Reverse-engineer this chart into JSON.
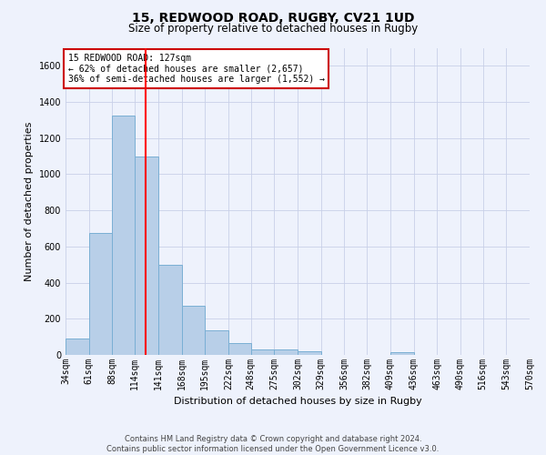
{
  "title1": "15, REDWOOD ROAD, RUGBY, CV21 1UD",
  "title2": "Size of property relative to detached houses in Rugby",
  "xlabel": "Distribution of detached houses by size in Rugby",
  "ylabel": "Number of detached properties",
  "annotation_line1": "15 REDWOOD ROAD: 127sqm",
  "annotation_line2": "← 62% of detached houses are smaller (2,657)",
  "annotation_line3": "36% of semi-detached houses are larger (1,552) →",
  "footer1": "Contains HM Land Registry data © Crown copyright and database right 2024.",
  "footer2": "Contains public sector information licensed under the Open Government Licence v3.0.",
  "bar_color": "#b8cfe8",
  "bar_edge_color": "#7aafd4",
  "red_line_x": 127,
  "bins": [
    34,
    61,
    88,
    114,
    141,
    168,
    195,
    222,
    248,
    275,
    302,
    329,
    356,
    382,
    409,
    436,
    463,
    490,
    516,
    543,
    570
  ],
  "heights": [
    93,
    675,
    1325,
    1100,
    500,
    270,
    135,
    68,
    30,
    30,
    20,
    0,
    0,
    0,
    15,
    0,
    0,
    0,
    0,
    0
  ],
  "ylim": [
    0,
    1700
  ],
  "yticks": [
    0,
    200,
    400,
    600,
    800,
    1000,
    1200,
    1400,
    1600
  ],
  "background_color": "#eef2fc",
  "grid_color": "#c8d0e8",
  "annotation_box_facecolor": "#ffffff",
  "annotation_box_edge": "#cc0000",
  "title1_fontsize": 10,
  "title2_fontsize": 8.5,
  "axis_label_fontsize": 8,
  "tick_fontsize": 7,
  "annotation_fontsize": 7,
  "footer_fontsize": 6
}
